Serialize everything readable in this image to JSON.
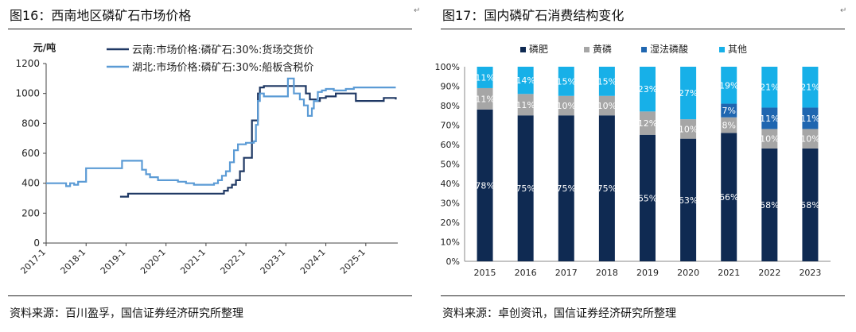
{
  "left_panel": {
    "title": "图16：西南地区磷矿石市场价格",
    "source": "资料来源：百川盈孚，国信证券经济研究所整理",
    "chart_data": {
      "type": "line",
      "title": "",
      "ylabel": "元/吨",
      "xlabel": "",
      "ylim": [
        0,
        1200
      ],
      "yticks": [
        "0",
        "200",
        "400",
        "600",
        "800",
        "1000",
        "1200"
      ],
      "xlim": [
        2017,
        2025.8
      ],
      "xticks": [
        "2017-1",
        "2018-1",
        "2019-1",
        "2020-1",
        "2021-1",
        "2022-1",
        "2023-1",
        "2024-1",
        "2025-1"
      ],
      "grid": false,
      "legend_position": "top",
      "series": [
        {
          "name": "云南:市场价格:磷矿石:30%:货场交货价",
          "color": "#1f3864",
          "x": [
            2018.85,
            2018.95,
            2019.05,
            2020.0,
            2020.5,
            2021.0,
            2021.35,
            2021.45,
            2021.55,
            2021.65,
            2021.75,
            2021.85,
            2021.95,
            2022.05,
            2022.15,
            2022.3,
            2022.35,
            2022.45,
            2022.7,
            2023.05,
            2023.35,
            2023.5,
            2023.6,
            2023.75,
            2023.85,
            2024.0,
            2024.25,
            2024.5,
            2024.75,
            2025.0,
            2025.3,
            2025.45,
            2025.6,
            2025.75
          ],
          "y": [
            310,
            310,
            330,
            330,
            330,
            330,
            330,
            350,
            370,
            390,
            420,
            480,
            570,
            570,
            820,
            1000,
            1040,
            1050,
            1050,
            1050,
            1050,
            1000,
            960,
            950,
            970,
            980,
            1000,
            1000,
            950,
            950,
            950,
            970,
            970,
            960
          ]
        },
        {
          "name": "湖北:市场价格:磷矿石:30%:船板含税价",
          "color": "#5b9bd5",
          "x": [
            2017.0,
            2017.3,
            2017.5,
            2017.6,
            2017.7,
            2017.8,
            2018.0,
            2018.5,
            2018.9,
            2019.0,
            2019.2,
            2019.4,
            2019.5,
            2019.6,
            2019.8,
            2020.0,
            2020.3,
            2020.5,
            2020.7,
            2021.0,
            2021.2,
            2021.3,
            2021.4,
            2021.5,
            2021.6,
            2021.7,
            2021.8,
            2021.9,
            2022.0,
            2022.1,
            2022.2,
            2022.25,
            2022.3,
            2022.35,
            2022.45,
            2022.55,
            2022.7,
            2022.9,
            2023.0,
            2023.05,
            2023.1,
            2023.2,
            2023.35,
            2023.45,
            2023.55,
            2023.65,
            2023.7,
            2023.8,
            2023.9,
            2024.0,
            2024.2,
            2024.5,
            2024.7,
            2025.0,
            2025.3,
            2025.75
          ],
          "y": [
            400,
            400,
            380,
            400,
            390,
            410,
            500,
            500,
            550,
            550,
            550,
            490,
            460,
            440,
            420,
            420,
            410,
            400,
            390,
            390,
            400,
            420,
            450,
            480,
            540,
            620,
            660,
            660,
            670,
            670,
            680,
            790,
            950,
            1000,
            980,
            980,
            980,
            980,
            980,
            1100,
            1100,
            1000,
            960,
            920,
            850,
            900,
            950,
            1010,
            1020,
            1030,
            1020,
            1030,
            1040,
            1040,
            1040,
            1040
          ]
        }
      ]
    }
  },
  "right_panel": {
    "title": "图17：国内磷矿石消费结构变化",
    "source": "资料来源：卓创资讯，国信证券经济研究所整理",
    "chart_data": {
      "type": "bar",
      "stacked": true,
      "title": "",
      "xlabel": "",
      "ylabel": "",
      "ylim": [
        0,
        100
      ],
      "yticks": [
        "0%",
        "10%",
        "20%",
        "30%",
        "40%",
        "50%",
        "60%",
        "70%",
        "80%",
        "90%",
        "100%"
      ],
      "grid": false,
      "legend_position": "top",
      "categories": [
        "2015",
        "2016",
        "2017",
        "2018",
        "2019",
        "2020",
        "2021",
        "2022",
        "2023"
      ],
      "series": [
        {
          "name": "磷肥",
          "color": "#0f2a52",
          "values": [
            78,
            75,
            75,
            75,
            65,
            63,
            66,
            58,
            58
          ],
          "labels": [
            "78%",
            "75%",
            "75%",
            "75%",
            "65%",
            "63%",
            "66%",
            "58%",
            "58%"
          ]
        },
        {
          "name": "黄磷",
          "color": "#a6a6a6",
          "values": [
            11,
            11,
            10,
            10,
            12,
            10,
            8,
            10,
            10
          ],
          "labels": [
            "11%",
            "11%",
            "10%",
            "10%",
            "12%",
            "10%",
            "8%",
            "10%",
            "10%"
          ]
        },
        {
          "name": "湿法磷酸",
          "color": "#1f66b0",
          "values": [
            0,
            0,
            0,
            0,
            0,
            0,
            7,
            11,
            11
          ],
          "labels": [
            "",
            "",
            "",
            "",
            "",
            "",
            "7%",
            "11%",
            "11%"
          ]
        },
        {
          "name": "其他",
          "color": "#17b0e8",
          "values": [
            11,
            14,
            15,
            15,
            23,
            27,
            19,
            21,
            21
          ],
          "labels": [
            "11%",
            "14%",
            "15%",
            "15%",
            "23%",
            "27%",
            "19%",
            "21%",
            "21%"
          ]
        }
      ]
    }
  }
}
